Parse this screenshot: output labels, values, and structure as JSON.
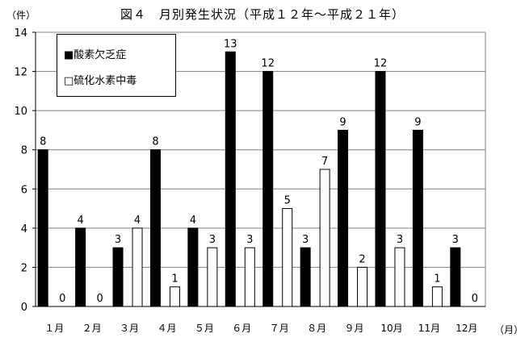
{
  "chart_data": {
    "type": "bar",
    "title": "図４　月別発生状況（平成１２年～平成２１年）",
    "ylabel": "（件）",
    "xlabel": "（月）",
    "categories": [
      "１月",
      "２月",
      "３月",
      "４月",
      "５月",
      "６月",
      "７月",
      "８月",
      "９月",
      "10月",
      "11月",
      "12月"
    ],
    "series": [
      {
        "name": "■酸素欠乏症",
        "values": [
          8,
          4,
          3,
          8,
          4,
          13,
          12,
          3,
          9,
          12,
          9,
          3
        ],
        "color": "#000000"
      },
      {
        "name": "□硫化水素中毒",
        "values": [
          0,
          0,
          4,
          1,
          3,
          3,
          5,
          7,
          2,
          3,
          1,
          0
        ],
        "color": "#ffffff"
      }
    ],
    "ylim": [
      0,
      14
    ],
    "yticks": [
      0,
      2,
      4,
      6,
      8,
      10,
      12,
      14
    ],
    "grid": true,
    "legend_position": "top-left"
  }
}
